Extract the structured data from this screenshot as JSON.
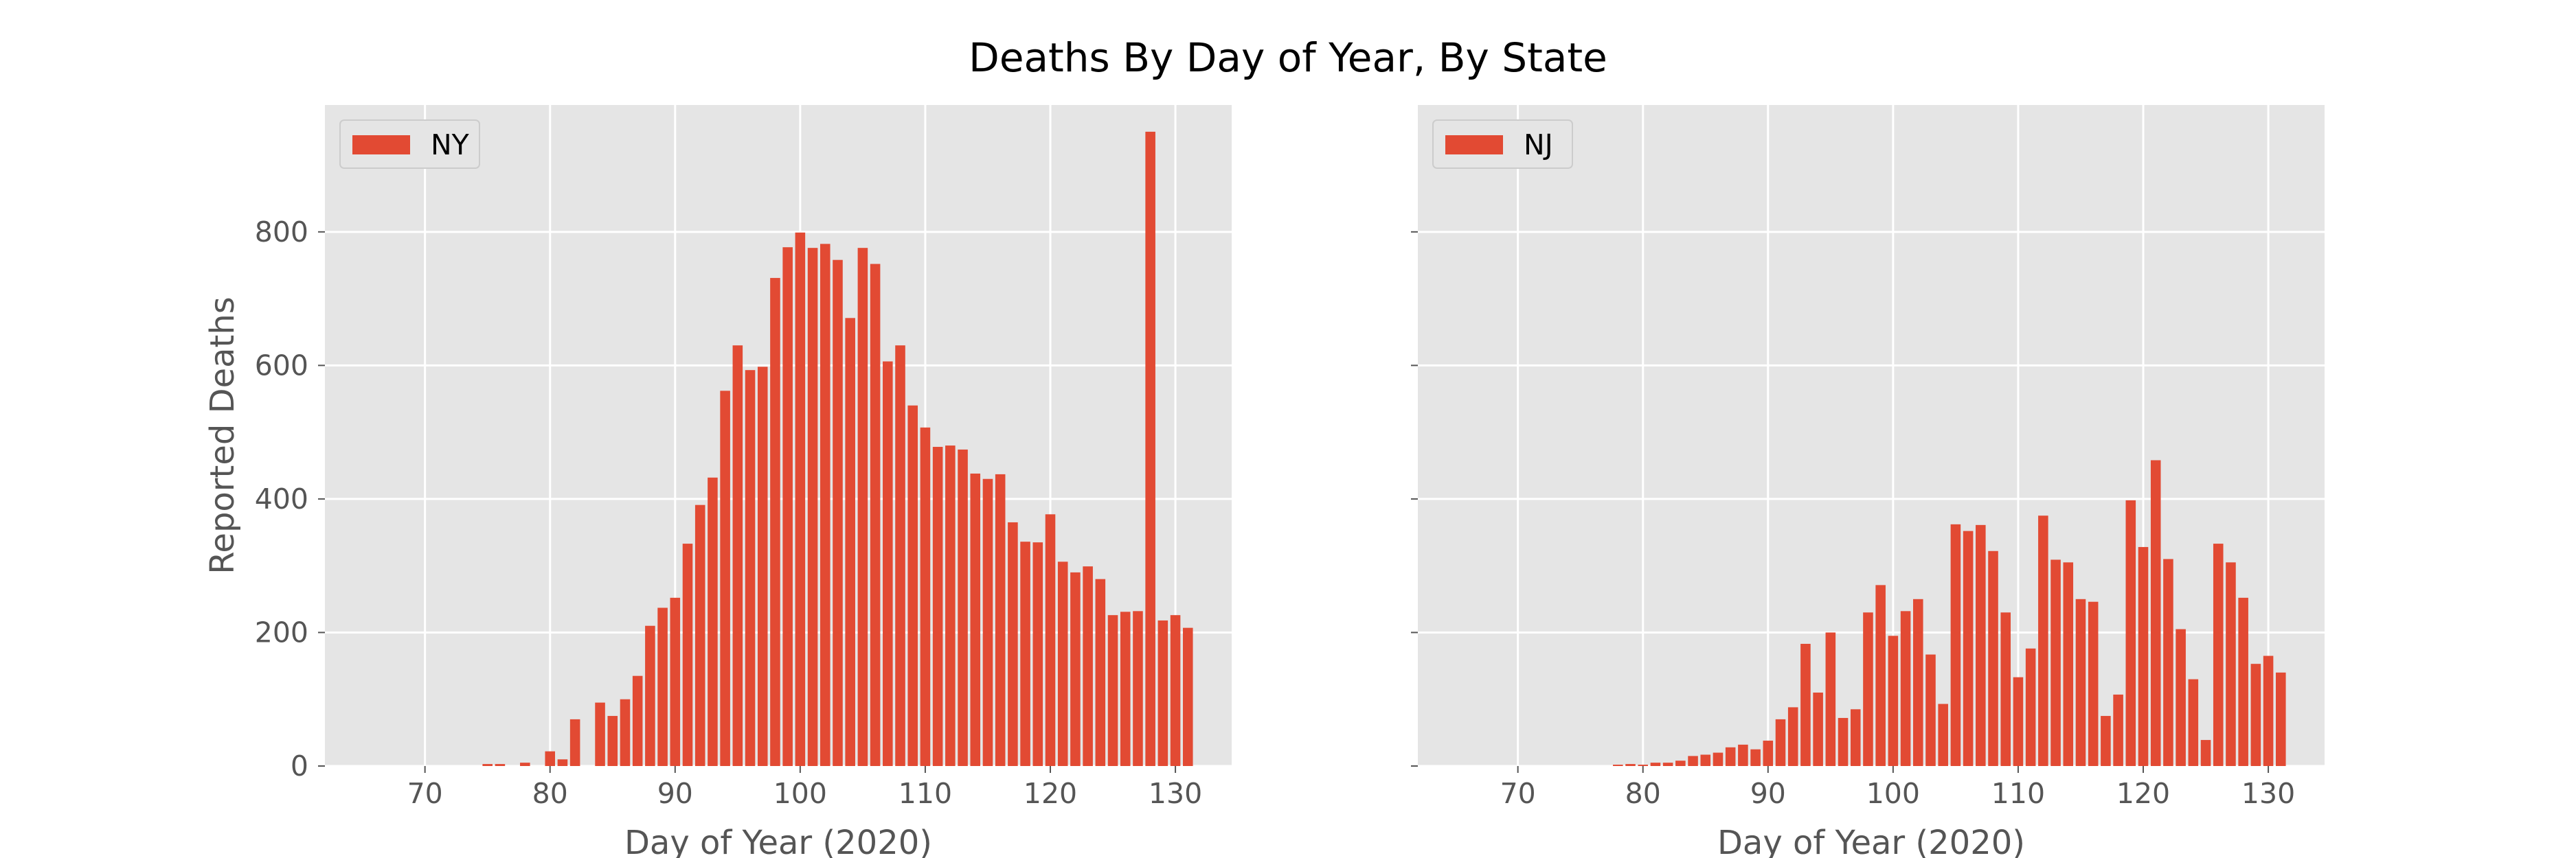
{
  "figure": {
    "title": "Deaths By Day of Year, By State"
  },
  "style": {
    "bar_color": "#E24A33",
    "axes_background": "#E5E5E5",
    "grid_color": "#FFFFFF",
    "tick_label_color": "#555555",
    "title_color": "#000000"
  },
  "chart_data": [
    {
      "type": "bar",
      "title": "",
      "xlabel": "Day of Year (2020)",
      "ylabel": "Reported Deaths",
      "xlim": [
        62,
        134.5
      ],
      "ylim": [
        0,
        990
      ],
      "xticks": [
        70,
        80,
        90,
        100,
        110,
        120,
        130
      ],
      "yticks": [
        0,
        200,
        400,
        600,
        800
      ],
      "show_ytick_labels": true,
      "grid": true,
      "legend": "top-left",
      "series": [
        {
          "name": "NY",
          "x": [
            75,
            76,
            77,
            78,
            79,
            80,
            81,
            82,
            83,
            84,
            85,
            86,
            87,
            88,
            89,
            90,
            91,
            92,
            93,
            94,
            95,
            96,
            97,
            98,
            99,
            100,
            101,
            102,
            103,
            104,
            105,
            106,
            107,
            108,
            109,
            110,
            111,
            112,
            113,
            114,
            115,
            116,
            117,
            118,
            119,
            120,
            121,
            122,
            123,
            124,
            125,
            126,
            127,
            128,
            129,
            130,
            131
          ],
          "values": [
            3,
            3,
            0,
            5,
            0,
            22,
            10,
            70,
            0,
            95,
            75,
            100,
            135,
            210,
            237,
            252,
            333,
            391,
            432,
            562,
            630,
            593,
            598,
            731,
            777,
            799,
            776,
            782,
            758,
            671,
            776,
            752,
            606,
            630,
            540,
            507,
            478,
            480,
            474,
            438,
            430,
            437,
            365,
            336,
            335,
            377,
            306,
            290,
            299,
            280,
            226,
            231,
            232,
            950,
            218,
            226,
            207
          ]
        }
      ]
    },
    {
      "type": "bar",
      "title": "",
      "xlabel": "Day of Year (2020)",
      "ylabel": "",
      "xlim": [
        62,
        134.5
      ],
      "ylim": [
        0,
        990
      ],
      "xticks": [
        70,
        80,
        90,
        100,
        110,
        120,
        130
      ],
      "yticks": [
        0,
        200,
        400,
        600,
        800
      ],
      "show_ytick_labels": false,
      "grid": true,
      "legend": "top-left",
      "series": [
        {
          "name": "NJ",
          "x": [
            75,
            76,
            77,
            78,
            79,
            80,
            81,
            82,
            83,
            84,
            85,
            86,
            87,
            88,
            89,
            90,
            91,
            92,
            93,
            94,
            95,
            96,
            97,
            98,
            99,
            100,
            101,
            102,
            103,
            104,
            105,
            106,
            107,
            108,
            109,
            110,
            111,
            112,
            113,
            114,
            115,
            116,
            117,
            118,
            119,
            120,
            121,
            122,
            123,
            124,
            125,
            126,
            127,
            128,
            129,
            130,
            131
          ],
          "values": [
            0,
            0,
            0,
            2,
            3,
            2,
            5,
            5,
            8,
            15,
            17,
            20,
            28,
            32,
            25,
            38,
            70,
            88,
            183,
            110,
            200,
            72,
            85,
            230,
            271,
            195,
            232,
            250,
            167,
            93,
            362,
            352,
            361,
            322,
            230,
            133,
            176,
            375,
            309,
            305,
            250,
            246,
            75,
            107,
            398,
            328,
            458,
            310,
            205,
            130,
            39,
            333,
            305,
            252,
            153,
            165,
            140
          ]
        }
      ]
    }
  ]
}
